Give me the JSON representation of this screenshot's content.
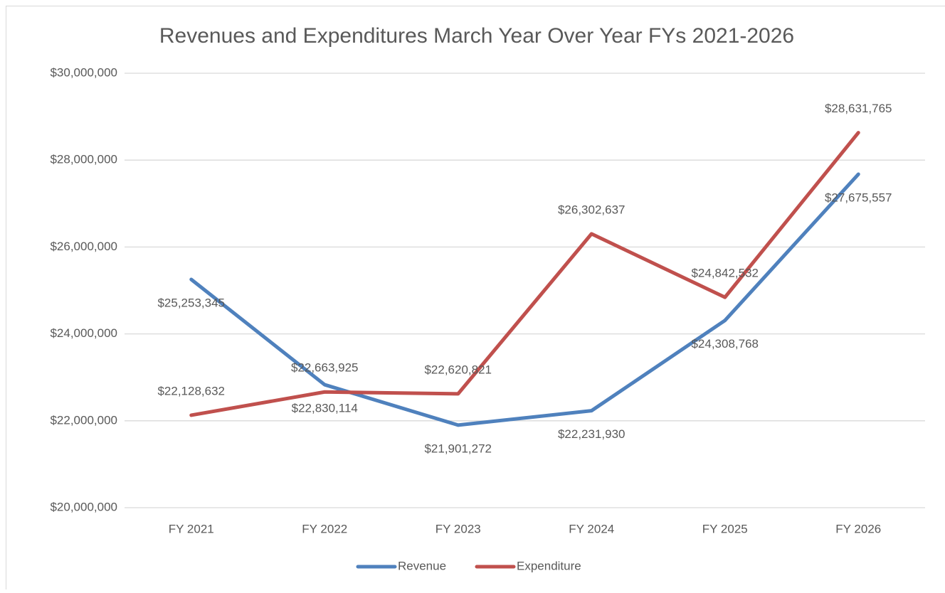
{
  "chart_data": {
    "type": "line",
    "title": "Revenues and Expenditures March Year Over Year FYs 2021-2026",
    "categories": [
      "FY 2021",
      "FY 2022",
      "FY 2023",
      "FY 2024",
      "FY 2025",
      "FY 2026"
    ],
    "series": [
      {
        "name": "Revenue",
        "color": "#4f81bd",
        "values": [
          25253345,
          22830114,
          21901272,
          22231930,
          24308768,
          27675557
        ],
        "value_labels": [
          "$25,253,345",
          "$22,830,114",
          "$21,901,272",
          "$22,231,930",
          "$24,308,768",
          "$27,675,557"
        ]
      },
      {
        "name": "Expenditure",
        "color": "#c0504d",
        "values": [
          22128632,
          22663925,
          22620821,
          26302637,
          24842532,
          28631765
        ],
        "value_labels": [
          "$22,128,632",
          "$22,663,925",
          "$22,620,821",
          "$26,302,637",
          "$24,842,532",
          "$28,631,765"
        ]
      }
    ],
    "ylim": [
      20000000,
      30000000
    ],
    "yticks": [
      {
        "value": 20000000,
        "label": "$20,000,000"
      },
      {
        "value": 22000000,
        "label": "$22,000,000"
      },
      {
        "value": 24000000,
        "label": "$24,000,000"
      },
      {
        "value": 26000000,
        "label": "$26,000,000"
      },
      {
        "value": 28000000,
        "label": "$28,000,000"
      },
      {
        "value": 30000000,
        "label": "$30,000,000"
      }
    ],
    "grid": true,
    "legend": "bottom"
  }
}
